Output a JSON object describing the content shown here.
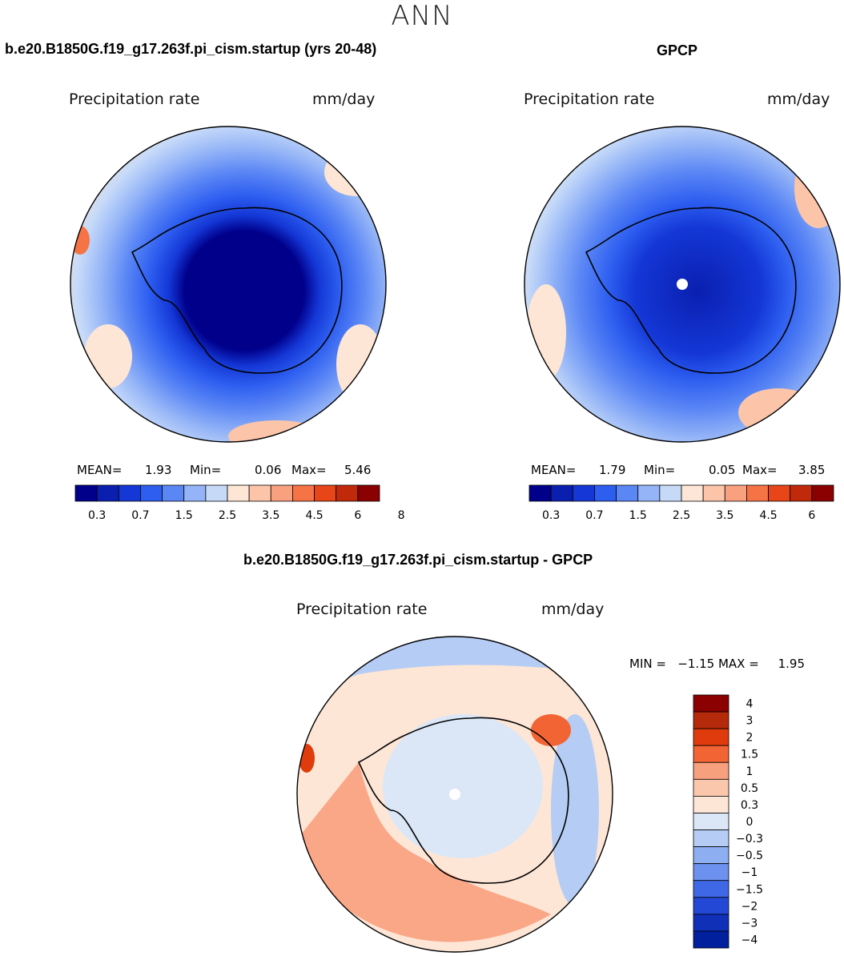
{
  "figure": {
    "season": "ANN"
  },
  "panels": [
    {
      "title": "b.e20.B1850G.f19_g17.263f.pi_cism.startup (yrs 20-48)",
      "variable": "Precipitation rate",
      "units": "mm/day",
      "stats": {
        "mean_label": "MEAN=",
        "mean": "1.93",
        "min_label": "Min=",
        "min": "0.06",
        "max_label": "Max=",
        "max": "5.46"
      }
    },
    {
      "title": "GPCP",
      "variable": "Precipitation rate",
      "units": "mm/day",
      "stats": {
        "mean_label": "MEAN=",
        "mean": "1.79",
        "min_label": "Min=",
        "min": "0.05",
        "max_label": "Max=",
        "max": "3.85"
      }
    },
    {
      "title": "b.e20.B1850G.f19_g17.263f.pi_cism.startup - GPCP",
      "variable": "Precipitation rate",
      "units": "mm/day",
      "stats": {
        "text": "MIN =   −1.15 MAX =     1.95"
      }
    }
  ],
  "abs_colorbar": {
    "colors": [
      "#00008b",
      "#0a1fb0",
      "#1437d6",
      "#2d5ef0",
      "#5b87f5",
      "#94b4f7",
      "#c6daf8",
      "#fde6d6",
      "#fcc5aa",
      "#f9a07e",
      "#f57345",
      "#e84518",
      "#c02a0a",
      "#8b0000"
    ],
    "ticks": [
      "0.3",
      "0.7",
      "1.5",
      "2.5",
      "3.5",
      "4.5",
      "6",
      "8"
    ]
  },
  "diff_colorbar": {
    "colors": [
      "#8b0000",
      "#b52a0a",
      "#df3b0c",
      "#f26433",
      "#f7a07e",
      "#fbc7ac",
      "#fde6d6",
      "#dbe7f7",
      "#b5ccf5",
      "#8eaef2",
      "#6c91ee",
      "#3e68e6",
      "#2348d6",
      "#1030b8",
      "#00209e"
    ],
    "ticks": [
      "4",
      "3",
      "2",
      "1.5",
      "1",
      "0.5",
      "0.3",
      "0",
      "−0.3",
      "−0.5",
      "−1",
      "−1.5",
      "−2",
      "−3",
      "−4"
    ]
  }
}
